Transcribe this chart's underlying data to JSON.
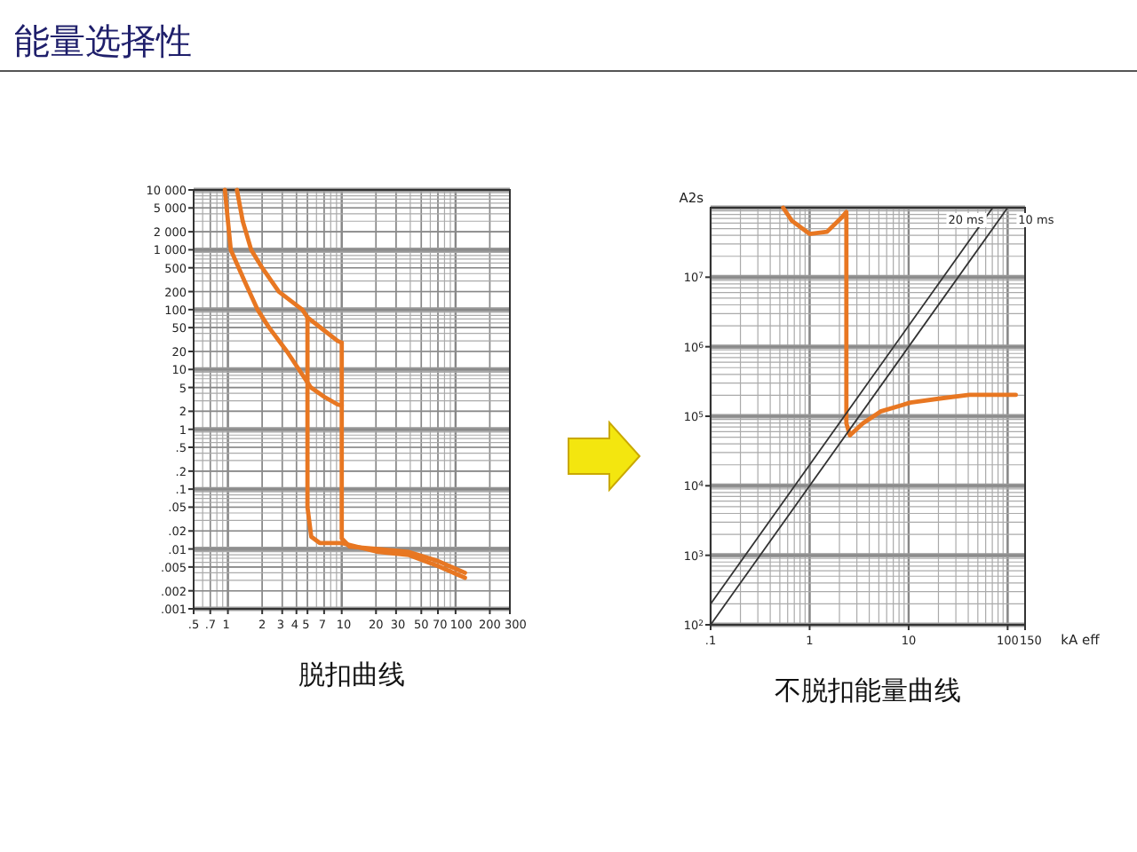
{
  "chart_data": [
    {
      "type": "other",
      "title": "能量选择性"
    },
    {
      "type": "line",
      "title": "脱扣曲线",
      "log": "xy",
      "grid": true,
      "xlim": [
        0.5,
        300
      ],
      "ylim": [
        0.001,
        10000
      ],
      "xticks": [
        {
          "value": 0.5,
          "label": ".5"
        },
        {
          "value": 0.7,
          "label": ".7"
        },
        1,
        2,
        3,
        4,
        5,
        7,
        10,
        20,
        30,
        50,
        70,
        100,
        200,
        300
      ],
      "yticks": [
        {
          "value": 10000,
          "label": "10 000"
        },
        {
          "value": 5000,
          "label": "5 000"
        },
        {
          "value": 2000,
          "label": "2 000"
        },
        {
          "value": 1000,
          "label": "1 000"
        },
        500,
        200,
        100,
        50,
        20,
        10,
        5,
        2,
        1,
        {
          "value": 0.5,
          "label": ".5"
        },
        {
          "value": 0.2,
          "label": ".2"
        },
        {
          "value": 0.1,
          "label": ".1"
        },
        {
          "value": 0.05,
          "label": ".05"
        },
        {
          "value": 0.02,
          "label": ".02"
        },
        {
          "value": 0.01,
          "label": ".01"
        },
        {
          "value": 0.005,
          "label": ".005"
        },
        {
          "value": 0.002,
          "label": ".002"
        },
        {
          "value": 0.001,
          "label": ".001"
        }
      ],
      "series": [
        {
          "color": "#e87722",
          "x": [
            0.94,
            1.06,
            1.4,
            1.82,
            2.3,
            3.3,
            4.2,
            5.35,
            7,
            9.2,
            10
          ],
          "values": [
            10000,
            1000,
            300,
            100,
            50,
            20,
            10,
            5,
            3.5,
            2.6,
            2.5
          ]
        },
        {
          "color": "#e87722",
          "x": [
            1.2,
            1.35,
            1.6,
            2,
            2.8,
            4.5,
            5,
            7,
            9.2,
            10
          ],
          "values": [
            10000,
            3000,
            1000,
            500,
            200,
            100,
            74,
            45,
            30,
            28
          ]
        },
        {
          "color": "#e87722",
          "x": [
            5,
            5,
            5,
            5.4,
            6.4,
            10,
            21,
            39,
            70,
            121
          ],
          "values": [
            74,
            1,
            0.05,
            0.016,
            0.0126,
            0.0126,
            0.0089,
            0.0079,
            0.0052,
            0.0033
          ]
        },
        {
          "color": "#e87722",
          "x": [
            10,
            10,
            10,
            11.7,
            21,
            39,
            70,
            121
          ],
          "values": [
            28,
            1,
            0.015,
            0.011,
            0.01,
            0.0089,
            0.0063,
            0.004
          ]
        }
      ]
    },
    {
      "type": "line",
      "title": "不脱扣能量曲线",
      "xlabel": "kA eff",
      "ylabel": "A2s",
      "log": "xy",
      "grid": true,
      "xlim": [
        0.1,
        150
      ],
      "ylim": [
        100,
        100000000
      ],
      "xticks": [
        {
          "value": 0.1,
          "label": ".1"
        },
        1,
        10,
        100,
        150
      ],
      "yticks": [
        {
          "value": 100,
          "label": "10$^{2}$"
        },
        {
          "value": 1000,
          "label": "10$^{3}$"
        },
        {
          "value": 10000,
          "label": "10$^{4}$"
        },
        {
          "value": 100000,
          "label": "10$^{5}$"
        },
        {
          "value": 1000000,
          "label": "10$^{6}$"
        },
        {
          "value": 10000000,
          "label": "10$^{7}$"
        }
      ],
      "series": [
        {
          "color": "#e87722",
          "x": [
            0.54,
            0.66,
            1,
            1.5,
            2.1,
            2.35,
            2.35,
            2.35,
            2.55,
            3.45,
            5.2,
            10.4,
            20.8,
            41,
            121
          ],
          "values": [
            100000000,
            65000000,
            42000000,
            45000000,
            72000000,
            87000000,
            1000000,
            79000,
            53000,
            79000,
            117000,
            157000,
            180000,
            203000,
            203000
          ]
        },
        {
          "name": "20 ms",
          "color": "#333333",
          "x": [
            0.1,
            70.7
          ],
          "values": [
            200,
            100000000
          ]
        },
        {
          "name": "10 ms",
          "color": "#333333",
          "x": [
            0.1,
            100
          ],
          "values": [
            100,
            100000000
          ]
        }
      ]
    }
  ]
}
